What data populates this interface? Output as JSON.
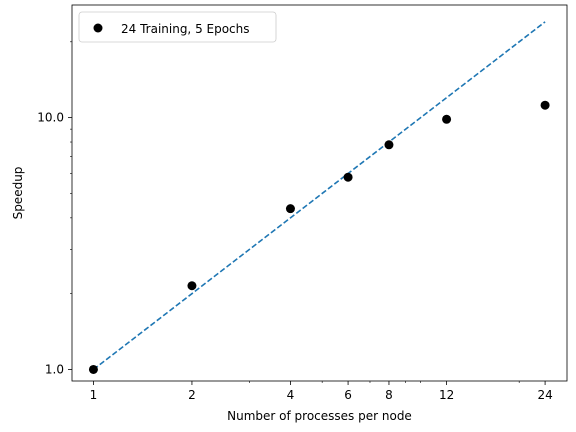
{
  "chart_data": {
    "type": "scatter",
    "title": "",
    "xlabel": "Number of processes per node",
    "ylabel": "Speedup",
    "x_scale": "log",
    "y_scale": "log",
    "xlim": [
      0.86,
      28
    ],
    "ylim": [
      0.9,
      28
    ],
    "x_ticks": [
      1,
      2,
      4,
      6,
      8,
      12,
      24
    ],
    "x_tick_labels": [
      "1",
      "2",
      "4",
      "6",
      "8",
      "12",
      "24"
    ],
    "y_ticks": [
      1,
      10
    ],
    "y_tick_labels": [
      "1.0",
      "10.0"
    ],
    "series": [
      {
        "name": "24 Training, 5 Epochs",
        "marker": "circle",
        "color": "#000000",
        "x": [
          1,
          2,
          4,
          6,
          8,
          12,
          24
        ],
        "y": [
          1.0,
          2.15,
          4.35,
          5.8,
          7.8,
          9.85,
          11.2
        ]
      }
    ],
    "reference_line": {
      "style": "dashed",
      "color": "#1f77b4",
      "x": [
        1,
        24
      ],
      "y": [
        1,
        24
      ]
    },
    "grid": false,
    "legend_position": "top-left"
  }
}
